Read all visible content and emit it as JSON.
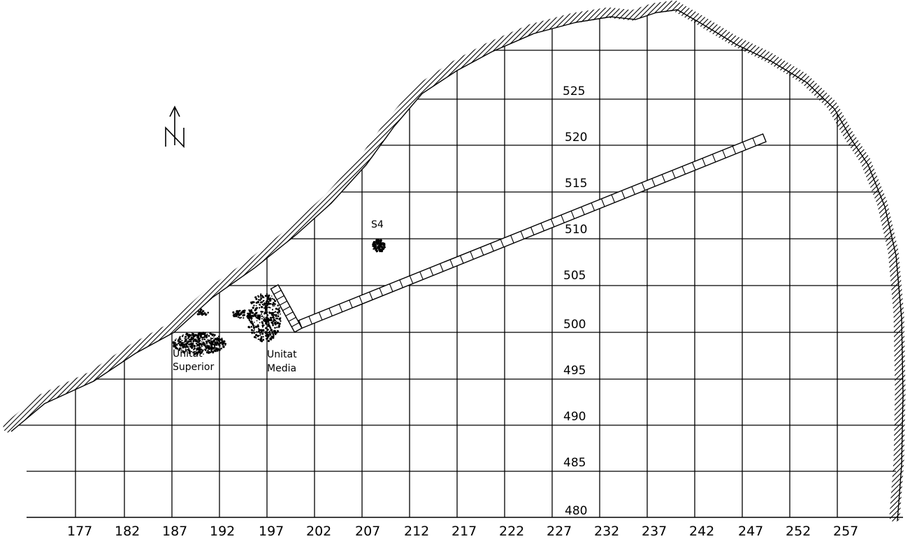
{
  "grid": {
    "x_labels": [
      "177",
      "182",
      "187",
      "192",
      "197",
      "202",
      "207",
      "212",
      "217",
      "222",
      "227",
      "232",
      "237",
      "242",
      "247",
      "252",
      "257"
    ],
    "y_labels": [
      "525",
      "520",
      "515",
      "510",
      "505",
      "500",
      "495",
      "490",
      "485",
      "480"
    ]
  },
  "labels": {
    "s4": "S4",
    "unit_superior_line1": "Unitat",
    "unit_superior_line2": "Superior",
    "unit_media_line1": "Unitat",
    "unit_media_line2": "Media"
  },
  "north_arrow": {
    "symbol": "north-arrow-icon",
    "letter": "N"
  },
  "colors": {
    "ink": "#000000",
    "background": "#ffffff"
  }
}
